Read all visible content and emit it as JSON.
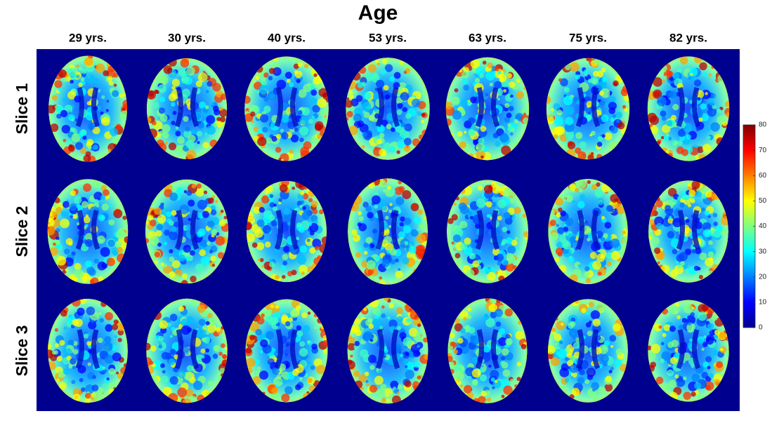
{
  "title": "Age",
  "columns": [
    "29 yrs.",
    "30 yrs.",
    "40 yrs.",
    "53 yrs.",
    "63 yrs.",
    "75 yrs.",
    "82 yrs."
  ],
  "rows": [
    "Slice 1",
    "Slice 2",
    "Slice 3"
  ],
  "colorbar": {
    "lim": [
      0,
      80
    ],
    "ticks": [
      0,
      10,
      20,
      30,
      40,
      50,
      60,
      70,
      80
    ]
  }
}
